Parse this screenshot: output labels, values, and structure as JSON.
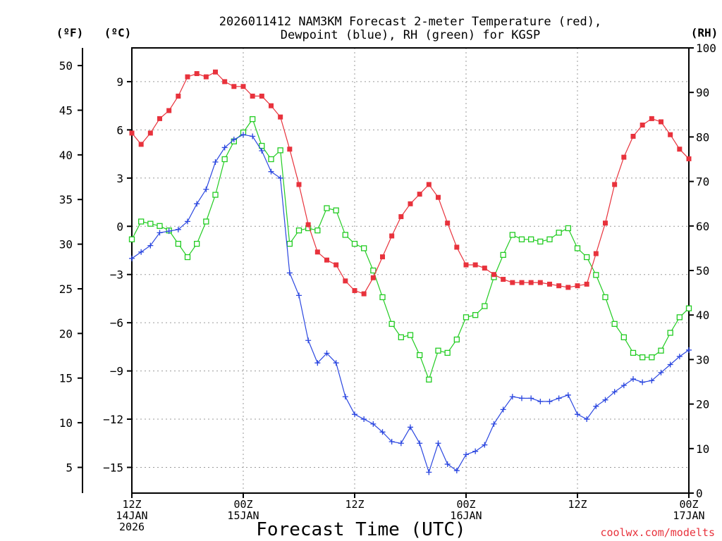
{
  "chart_data": {
    "type": "line",
    "title_line1": "2026011412 NAM3KM Forecast 2-meter Temperature (red),",
    "title_line2": "Dewpoint (blue), RH (green) for KGSP",
    "xlabel": "Forecast Time (UTC)",
    "credit": "coolwx.com/modelts",
    "units": {
      "fahrenheit": "(ºF)",
      "celsius": "(ºC)",
      "rh": "(RH)"
    },
    "x_unit": "forecast hour",
    "xlim": [
      0,
      60
    ],
    "x_ticks": [
      {
        "x": 0,
        "line1": "12Z",
        "line2": "14JAN",
        "line3": "2026"
      },
      {
        "x": 12,
        "line1": "00Z",
        "line2": "15JAN",
        "line3": ""
      },
      {
        "x": 24,
        "line1": "12Z",
        "line2": "",
        "line3": ""
      },
      {
        "x": 36,
        "line1": "00Z",
        "line2": "16JAN",
        "line3": ""
      },
      {
        "x": 48,
        "line1": "12Z",
        "line2": "",
        "line3": ""
      },
      {
        "x": 60,
        "line1": "00Z",
        "line2": "17JAN",
        "line3": ""
      }
    ],
    "celsius_ylim": [
      -16.6,
      11.1
    ],
    "celsius_ticks": [
      "9",
      "6",
      "3",
      "0",
      "−3",
      "−6",
      "−9",
      "−12",
      "−15"
    ],
    "fahrenheit_ticks": [
      "50",
      "45",
      "40",
      "35",
      "30",
      "25",
      "20",
      "15",
      "10",
      "5"
    ],
    "rh_ylim": [
      0,
      100
    ],
    "rh_ticks": [
      "100",
      "90",
      "80",
      "70",
      "60",
      "50",
      "40",
      "30",
      "20",
      "10",
      "0"
    ],
    "colors": {
      "temperature": "#e8323c",
      "dewpoint": "#2a46e0",
      "rh": "#22cc22",
      "grid": "#9a9a9a"
    },
    "series": [
      {
        "name": "Temperature",
        "unit": "C",
        "marker": "filled-square",
        "values": [
          5.8,
          5.1,
          5.8,
          6.7,
          7.2,
          8.1,
          9.3,
          9.5,
          9.3,
          9.6,
          9.0,
          8.7,
          8.7,
          8.1,
          8.1,
          7.5,
          6.8,
          4.8,
          2.6,
          0.1,
          -1.6,
          -2.1,
          -2.4,
          -3.4,
          -4.0,
          -4.2,
          -3.2,
          -1.9,
          -0.6,
          0.6,
          1.4,
          2.0,
          2.6,
          1.8,
          0.2,
          -1.3,
          -2.4,
          -2.4,
          -2.6,
          -3.0,
          -3.3,
          -3.5,
          -3.5,
          -3.5,
          -3.5,
          -3.6,
          -3.7,
          -3.8,
          -3.7,
          -3.6,
          -1.7,
          0.2,
          2.6,
          4.3,
          5.6,
          6.3,
          6.7,
          6.5,
          5.7,
          4.8,
          4.2
        ]
      },
      {
        "name": "Dewpoint",
        "unit": "C",
        "marker": "plus",
        "values": [
          -2.0,
          -1.6,
          -1.2,
          -0.4,
          -0.3,
          -0.2,
          0.3,
          1.4,
          2.3,
          4.0,
          4.9,
          5.4,
          5.7,
          5.6,
          4.7,
          3.4,
          3.0,
          -2.9,
          -4.3,
          -7.1,
          -8.5,
          -7.9,
          -8.5,
          -10.6,
          -11.7,
          -12.0,
          -12.3,
          -12.8,
          -13.4,
          -13.5,
          -12.5,
          -13.5,
          -15.3,
          -13.5,
          -14.8,
          -15.2,
          -14.2,
          -14.0,
          -13.6,
          -12.3,
          -11.4,
          -10.6,
          -10.7,
          -10.7,
          -10.9,
          -10.9,
          -10.7,
          -10.5,
          -11.7,
          -12.0,
          -11.2,
          -10.8,
          -10.3,
          -9.9,
          -9.5,
          -9.7,
          -9.6,
          -9.1,
          -8.6,
          -8.1,
          -7.7
        ]
      },
      {
        "name": "RH",
        "unit": "%",
        "marker": "open-square",
        "values": [
          57,
          61,
          60.5,
          60,
          59,
          56,
          53,
          56,
          61,
          67,
          75,
          79,
          81,
          84,
          78,
          75,
          77,
          56,
          59,
          59.5,
          59,
          64,
          63.5,
          58,
          56,
          55,
          50,
          44,
          38,
          35,
          35.5,
          31,
          25.5,
          32,
          31.5,
          34.5,
          39.5,
          40,
          42,
          48.5,
          53.5,
          58,
          57,
          57,
          56.5,
          57,
          58.5,
          59.5,
          55,
          53,
          49,
          44,
          38,
          35,
          31.5,
          30.5,
          30.5,
          32,
          36,
          39.5,
          41.5
        ]
      }
    ]
  }
}
